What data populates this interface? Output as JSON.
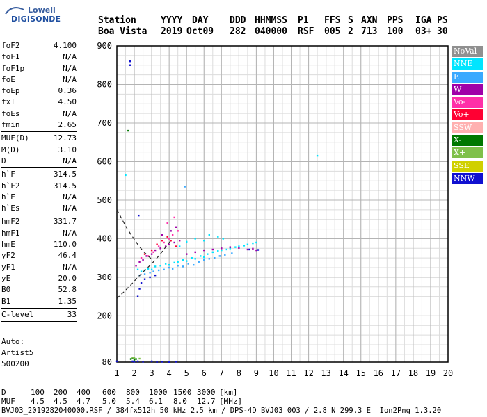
{
  "logo": {
    "line1": "Lowell",
    "line2": "DIGISONDE"
  },
  "header": {
    "labels": [
      "Station",
      "YYYY",
      "DAY",
      "DDD",
      "HHMMSS",
      "P1",
      "FFS",
      "S",
      "AXN",
      "PPS",
      "IGA",
      "PS"
    ],
    "values": [
      "Boa Vista",
      "2019",
      "Oct09",
      "282",
      "040000",
      "RSF",
      "005",
      "2",
      "713",
      "100",
      "03+",
      "30"
    ]
  },
  "params": {
    "groups": [
      [
        [
          "foF2",
          "4.100"
        ],
        [
          "foF1",
          "N/A"
        ],
        [
          "foF1p",
          "N/A"
        ],
        [
          "foE",
          "N/A"
        ],
        [
          "foEp",
          "0.36"
        ],
        [
          "fxI",
          "4.50"
        ],
        [
          "foEs",
          "N/A"
        ],
        [
          "fmin",
          "2.65"
        ]
      ],
      [
        [
          "MUF(D)",
          "12.73"
        ],
        [
          "M(D)",
          "3.10"
        ],
        [
          "D",
          "N/A"
        ]
      ],
      [
        [
          "h`F",
          "314.5"
        ],
        [
          "h`F2",
          "314.5"
        ],
        [
          "h`E",
          "N/A"
        ],
        [
          "h`Es",
          "N/A"
        ]
      ],
      [
        [
          "hmF2",
          "331.7"
        ],
        [
          "hmF1",
          "N/A"
        ],
        [
          "hmE",
          "110.0"
        ],
        [
          "yF2",
          "46.4"
        ],
        [
          "yF1",
          "N/A"
        ],
        [
          "yE",
          "20.0"
        ],
        [
          "B0",
          "52.8"
        ],
        [
          "B1",
          "1.35"
        ]
      ],
      [
        [
          "C-level",
          "33"
        ]
      ]
    ]
  },
  "auto": {
    "line1": "Auto:",
    "line2": "Artist5",
    "line3": "500200"
  },
  "legend": [
    {
      "label": "NoVal",
      "color": "#909090"
    },
    {
      "label": "NNE",
      "color": "#00e5ff"
    },
    {
      "label": "E",
      "color": "#3aa9ff"
    },
    {
      "label": "W",
      "color": "#a000a8"
    },
    {
      "label": "Vo-",
      "color": "#ff2fa8"
    },
    {
      "label": "Vo+",
      "color": "#ff0033"
    },
    {
      "label": "SSW",
      "color": "#ffb0b0"
    },
    {
      "label": "X-",
      "color": "#007800"
    },
    {
      "label": "X+",
      "color": "#7fc04a"
    },
    {
      "label": "SSE",
      "color": "#d0d000"
    },
    {
      "label": "NNW",
      "color": "#1010d0"
    }
  ],
  "mufline": {
    "d_label": "D",
    "d_values": [
      "100",
      "200",
      "400",
      "600",
      "800",
      "1000",
      "1500",
      "3000",
      "[km]"
    ],
    "muf_label": "MUF",
    "muf_values": [
      "4.5",
      "4.5",
      "4.7",
      "5.0",
      "5.4",
      "6.1",
      "8.0",
      "12.7",
      "[MHz]"
    ]
  },
  "footer": "BVJ03_2019282040000.RSF / 384fx512h 50 kHz 2.5 km / DPS-4D BVJ03 003 / 2.8 N 299.3 E  Ion2Png 1.3.20",
  "chart_data": {
    "type": "scatter",
    "xlim": [
      1,
      20
    ],
    "ylim": [
      80,
      900
    ],
    "x_ticks": [
      1,
      2,
      3,
      4,
      5,
      6,
      7,
      8,
      9,
      10,
      11,
      12,
      13,
      14,
      15,
      16,
      17,
      18,
      19,
      20
    ],
    "y_ticks": [
      80,
      200,
      300,
      400,
      500,
      600,
      700,
      800,
      900
    ],
    "grid": true,
    "series": [
      {
        "name": "NNE",
        "color": "#00e5ff",
        "points": [
          [
            2.2,
            320
          ],
          [
            2.4,
            315
          ],
          [
            2.6,
            318
          ],
          [
            2.8,
            322
          ],
          [
            3.0,
            320
          ],
          [
            3.2,
            328
          ],
          [
            3.5,
            330
          ],
          [
            3.8,
            335
          ],
          [
            4.0,
            332
          ],
          [
            4.3,
            338
          ],
          [
            4.5,
            340
          ],
          [
            4.8,
            345
          ],
          [
            5.0,
            342
          ],
          [
            5.3,
            350
          ],
          [
            5.5,
            348
          ],
          [
            5.8,
            355
          ],
          [
            6.0,
            352
          ],
          [
            6.2,
            360
          ],
          [
            6.5,
            365
          ],
          [
            6.8,
            368
          ],
          [
            7.0,
            370
          ],
          [
            7.3,
            372
          ],
          [
            7.5,
            375
          ],
          [
            7.8,
            378
          ],
          [
            8.0,
            380
          ],
          [
            8.3,
            382
          ],
          [
            8.5,
            385
          ],
          [
            8.8,
            388
          ],
          [
            9.0,
            390
          ],
          [
            5.5,
            400
          ],
          [
            6.0,
            395
          ],
          [
            6.3,
            410
          ],
          [
            6.8,
            405
          ],
          [
            7.1,
            400
          ],
          [
            4.6,
            380
          ],
          [
            5.0,
            392
          ],
          [
            1.5,
            565
          ],
          [
            12.5,
            615
          ]
        ]
      },
      {
        "name": "E",
        "color": "#3aa9ff",
        "points": [
          [
            2.3,
            305
          ],
          [
            2.6,
            308
          ],
          [
            2.9,
            312
          ],
          [
            3.1,
            315
          ],
          [
            3.4,
            318
          ],
          [
            3.7,
            320
          ],
          [
            4.0,
            325
          ],
          [
            4.2,
            322
          ],
          [
            4.5,
            330
          ],
          [
            4.8,
            328
          ],
          [
            5.1,
            335
          ],
          [
            5.4,
            332
          ],
          [
            5.7,
            340
          ],
          [
            6.0,
            345
          ],
          [
            6.3,
            348
          ],
          [
            6.6,
            350
          ],
          [
            6.9,
            355
          ],
          [
            7.2,
            358
          ],
          [
            7.6,
            362
          ],
          [
            4.9,
            535
          ]
        ]
      },
      {
        "name": "W",
        "color": "#a000a8",
        "points": [
          [
            2.1,
            330
          ],
          [
            2.3,
            340
          ],
          [
            2.5,
            345
          ],
          [
            2.7,
            355
          ],
          [
            3.0,
            360
          ],
          [
            3.2,
            370
          ],
          [
            3.5,
            375
          ],
          [
            3.8,
            380
          ],
          [
            4.0,
            385
          ],
          [
            4.3,
            390
          ],
          [
            4.6,
            395
          ],
          [
            5.0,
            360
          ],
          [
            5.5,
            365
          ],
          [
            6.0,
            370
          ],
          [
            6.5,
            372
          ],
          [
            7.0,
            375
          ],
          [
            7.5,
            378
          ],
          [
            8.0,
            376
          ],
          [
            8.5,
            372
          ],
          [
            8.8,
            374
          ],
          [
            9.0,
            370
          ],
          [
            3.6,
            410
          ],
          [
            4.1,
            420
          ],
          [
            4.4,
            430
          ]
        ]
      },
      {
        "name": "Vo-",
        "color": "#ff2fa8",
        "points": [
          [
            2.4,
            350
          ],
          [
            2.8,
            355
          ],
          [
            3.1,
            365
          ],
          [
            3.4,
            380
          ],
          [
            3.7,
            390
          ],
          [
            4.0,
            400
          ],
          [
            4.2,
            410
          ],
          [
            4.5,
            420
          ],
          [
            3.9,
            440
          ],
          [
            4.3,
            455
          ]
        ]
      },
      {
        "name": "Vo+",
        "color": "#ff0033",
        "points": [
          [
            2.6,
            360
          ],
          [
            3.0,
            370
          ],
          [
            3.3,
            385
          ],
          [
            3.6,
            395
          ],
          [
            3.9,
            405
          ],
          [
            4.1,
            395
          ],
          [
            4.4,
            380
          ]
        ]
      },
      {
        "name": "X-",
        "color": "#007800",
        "points": [
          [
            1.65,
            680
          ],
          [
            1.8,
            88
          ],
          [
            1.9,
            90
          ],
          [
            2.0,
            86
          ],
          [
            2.1,
            88
          ]
        ]
      },
      {
        "name": "X+",
        "color": "#7fc04a",
        "points": [
          [
            1.9,
            92
          ],
          [
            2.0,
            91
          ],
          [
            2.3,
            89
          ]
        ]
      },
      {
        "name": "NNW",
        "color": "#1010d0",
        "points": [
          [
            1.75,
            860
          ],
          [
            1.75,
            850
          ],
          [
            2.2,
            250
          ],
          [
            2.3,
            270
          ],
          [
            2.4,
            285
          ],
          [
            2.6,
            295
          ],
          [
            2.9,
            300
          ],
          [
            3.2,
            305
          ],
          [
            8.6,
            372
          ],
          [
            9.1,
            371
          ],
          [
            1.9,
            82
          ],
          [
            2.0,
            81
          ],
          [
            2.2,
            82
          ],
          [
            2.5,
            81
          ],
          [
            3.0,
            82
          ],
          [
            3.3,
            80
          ],
          [
            3.6,
            81
          ],
          [
            4.0,
            80
          ],
          [
            4.4,
            81
          ],
          [
            2.25,
            460
          ],
          [
            1.0,
            82
          ]
        ]
      }
    ],
    "curves": [
      {
        "name": "upper",
        "style": "dashed",
        "points": [
          [
            1.0,
            475
          ],
          [
            1.3,
            450
          ],
          [
            1.6,
            425
          ],
          [
            1.9,
            405
          ],
          [
            2.2,
            385
          ],
          [
            2.5,
            368
          ],
          [
            2.8,
            355
          ],
          [
            3.0,
            347
          ]
        ]
      },
      {
        "name": "lower",
        "style": "dashed",
        "points": [
          [
            1.0,
            245
          ],
          [
            1.4,
            262
          ],
          [
            1.8,
            280
          ],
          [
            2.2,
            300
          ],
          [
            2.6,
            318
          ],
          [
            3.0,
            335
          ],
          [
            3.4,
            355
          ],
          [
            3.7,
            372
          ],
          [
            3.9,
            385
          ],
          [
            4.1,
            395
          ]
        ]
      }
    ]
  }
}
